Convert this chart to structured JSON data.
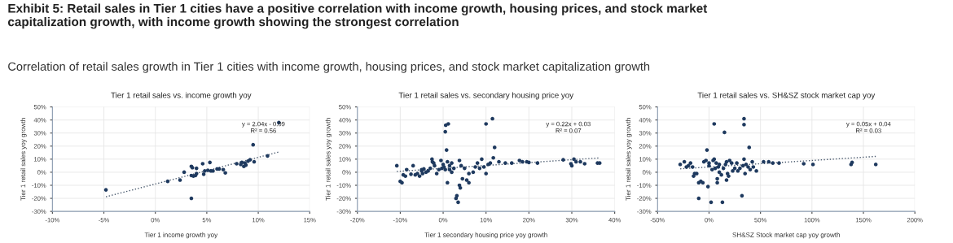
{
  "chart_data": [
    {
      "type": "other",
      "title": "Exhibit 5: Retail sales in Tier 1 cities have a positive correlation with income growth, housing prices, and stock market\ncapitalization growth, with income growth showing the strongest correlation",
      "subtitle": "Correlation of retail sales growth in Tier 1 cities with income growth, housing prices, and stock market capitalization growth"
    },
    {
      "type": "scatter",
      "title": "Tier 1 retail sales vs. income growth yoy",
      "xlabel": "Tier 1 income growth yoy",
      "ylabel": "Tier 1 retail sales yoy growth",
      "xlim": [
        -10,
        15
      ],
      "xticks": [
        {
          "value": -10,
          "label": "-10%"
        },
        {
          "value": -5,
          "label": "-5%"
        },
        {
          "value": 0,
          "label": "0%"
        },
        {
          "value": 5,
          "label": "5%"
        },
        {
          "value": 10,
          "label": "10%"
        },
        {
          "value": 15,
          "label": "15%"
        }
      ],
      "ylim": [
        -30,
        50
      ],
      "yticks": [
        {
          "value": -30,
          "label": "-30%"
        },
        {
          "value": -20,
          "label": "-20%"
        },
        {
          "value": -10,
          "label": "-10%"
        },
        {
          "value": 0,
          "label": "0%"
        },
        {
          "value": 10,
          "label": "10%"
        },
        {
          "value": 20,
          "label": "20%"
        },
        {
          "value": 30,
          "label": "30%"
        },
        {
          "value": 40,
          "label": "40%"
        },
        {
          "value": 50,
          "label": "50%"
        }
      ],
      "grid": true,
      "annotations": [
        "y = 2.04x - 0.09\nR² = 0.56"
      ],
      "series": [
        {
          "type": "scatter",
          "color": "#1f3a5f",
          "marker": "circle",
          "x": [
            -4.8,
            1.2,
            2.4,
            2.8,
            3.5,
            3.6,
            3.5,
            3.7,
            3.9,
            4.0,
            4.0,
            3.5,
            4.6,
            4.7,
            4.8,
            5.1,
            5.3,
            5.4,
            5.6,
            6.0,
            6.2,
            6.6,
            6.8,
            7.9,
            8.2,
            8.4,
            8.5,
            8.7,
            8.8,
            8.9,
            9.0,
            9.2,
            9.5,
            9.6,
            10.9,
            12.0,
            8.6,
            8.3
          ],
          "values": [
            -13.5,
            -7,
            -6,
            0,
            4.5,
            3.5,
            -2.5,
            -3,
            -2.5,
            3,
            -1,
            -20,
            6.5,
            -1.5,
            1,
            1.5,
            7.5,
            1,
            1,
            2.5,
            2.5,
            2,
            -0.5,
            6.5,
            null,
            7.5,
            null,
            7,
            5.5,
            null,
            8.5,
            9.5,
            21,
            8,
            12.5,
            38,
            4.5,
            6
          ]
        },
        {
          "type": "line",
          "color": "#4a5a6e",
          "marker": "none",
          "line_style": "dotted",
          "x": [
            -4.8,
            12
          ],
          "values": [
            -18.8,
            15.5
          ]
        }
      ]
    },
    {
      "type": "scatter",
      "title": "Tier 1 retail sales vs. secondary housing price yoy",
      "xlabel": "Tier 1 secondary housing price yoy growth",
      "ylabel": "Tier 1 retail sales yoy growth",
      "xlim": [
        -20,
        40
      ],
      "xticks": [
        {
          "value": -20,
          "label": "-20%"
        },
        {
          "value": -10,
          "label": "-10%"
        },
        {
          "value": 0,
          "label": "0%"
        },
        {
          "value": 10,
          "label": "10%"
        },
        {
          "value": 20,
          "label": "20%"
        },
        {
          "value": 30,
          "label": "30%"
        },
        {
          "value": 40,
          "label": "40%"
        }
      ],
      "ylim": [
        -30,
        50
      ],
      "yticks": [
        {
          "value": -30,
          "label": "-30%"
        },
        {
          "value": -20,
          "label": "-20%"
        },
        {
          "value": -10,
          "label": "-10%"
        },
        {
          "value": 0,
          "label": "0%"
        },
        {
          "value": 10,
          "label": "10%"
        },
        {
          "value": 20,
          "label": "20%"
        },
        {
          "value": 30,
          "label": "30%"
        },
        {
          "value": 40,
          "label": "40%"
        },
        {
          "value": 50,
          "label": "50%"
        }
      ],
      "grid": true,
      "annotations": [
        "y = 0.22x + 0.03\nR² = 0.07"
      ],
      "series": [
        {
          "type": "scatter",
          "color": "#1f3a5f",
          "marker": "circle",
          "x": [
            -10.8,
            -10,
            -9.6,
            -9.3,
            -8.8,
            -8.5,
            -7.5,
            -7,
            -6.5,
            -6,
            -5.5,
            -5,
            -5,
            -4.8,
            -4.5,
            -4,
            -3.5,
            -3,
            -2.6,
            -2.5,
            -2.2,
            -2,
            -1.5,
            -1,
            -0.5,
            -0.3,
            0,
            0.2,
            0.5,
            0.6,
            0.5,
            0.8,
            1,
            1,
            1.2,
            1.5,
            1.5,
            2,
            2,
            2.5,
            3,
            3.2,
            3.5,
            3.8,
            4,
            3.8,
            4.2,
            4.5,
            5,
            5.5,
            6,
            6,
            7,
            7.5,
            8,
            8.5,
            9,
            9.5,
            10,
            10,
            10.5,
            11,
            11.5,
            11.7,
            12,
            13,
            14.5,
            16,
            17.8,
            18.5,
            19.5,
            20,
            22,
            28,
            29.8,
            30,
            30.5,
            31,
            32,
            33,
            36,
            36.5
          ],
          "values": [
            5,
            -7,
            -8,
            -2,
            -3,
            2,
            -1.5,
            5,
            -2,
            -1,
            -3,
            1,
            2,
            -1,
            2.5,
            0,
            1,
            3,
            10,
            8,
            7,
            5,
            -1,
            2,
            9,
            3,
            6,
            4,
            2,
            36,
            31,
            17,
            8,
            -8,
            37,
            2,
            5,
            7,
            0,
            3,
            -20,
            -18,
            -23,
            -10,
            -12,
            9,
            5,
            -5,
            3,
            -6,
            -8,
            -1,
            0,
            4,
            7,
            3,
            10,
            4,
            -1,
            37,
            6,
            7,
            41,
            11,
            19,
            8,
            7,
            7,
            9,
            8,
            8,
            7.5,
            7,
            9.5,
            6.5,
            5,
            10,
            8,
            8,
            6.5,
            7,
            7
          ]
        },
        {
          "type": "line",
          "color": "#4a5a6e",
          "marker": "none",
          "line_style": "dotted",
          "x": [
            -10.8,
            36.5
          ],
          "values": [
            0.6,
            11.0
          ]
        }
      ]
    },
    {
      "type": "scatter",
      "title": "Tier 1 retail sales vs. SH&SZ stock market cap yoy",
      "xlabel": "SH&SZ Stock market cap yoy growth",
      "ylabel": "Tier 1 retail sales yoy growth",
      "xlim": [
        -50,
        200
      ],
      "xticks": [
        {
          "value": -50,
          "label": "-50%"
        },
        {
          "value": 0,
          "label": "0%"
        },
        {
          "value": 50,
          "label": "50%"
        },
        {
          "value": 100,
          "label": "100%"
        },
        {
          "value": 150,
          "label": "150%"
        },
        {
          "value": 200,
          "label": "200%"
        }
      ],
      "ylim": [
        -30,
        50
      ],
      "yticks": [
        {
          "value": -30,
          "label": "-30%"
        },
        {
          "value": -20,
          "label": "-20%"
        },
        {
          "value": -10,
          "label": "-10%"
        },
        {
          "value": 0,
          "label": "0%"
        },
        {
          "value": 10,
          "label": "10%"
        },
        {
          "value": 20,
          "label": "20%"
        },
        {
          "value": 30,
          "label": "30%"
        },
        {
          "value": 40,
          "label": "40%"
        },
        {
          "value": 50,
          "label": "50%"
        }
      ],
      "grid": true,
      "annotations": [
        "y = 0.05x + 0.04\nR² = 0.03"
      ],
      "series": [
        {
          "type": "scatter",
          "color": "#1f3a5f",
          "marker": "circle",
          "x": [
            -28,
            -24,
            -22,
            -20,
            -18,
            -16,
            -15,
            -14,
            -12,
            -10,
            -10,
            -8,
            -6,
            -5,
            -3,
            -2,
            -1,
            0,
            0,
            2,
            3,
            4,
            5,
            5,
            6,
            7,
            8,
            8,
            9,
            10,
            10,
            12,
            13,
            14,
            15,
            16,
            17,
            17,
            18,
            19,
            20,
            22,
            23,
            25,
            27,
            28,
            30,
            32,
            33,
            34,
            34,
            34,
            35,
            36,
            38,
            39,
            40,
            42,
            43,
            46,
            53,
            58,
            62,
            68,
            92,
            101,
            138,
            139,
            162
          ],
          "values": [
            6,
            8,
            4,
            5,
            7,
            4,
            -3,
            -1,
            -1,
            -8,
            -20,
            -7,
            -8,
            8,
            9,
            17,
            -11,
            7,
            5,
            -23,
            2,
            9,
            10,
            37,
            3,
            7,
            -5,
            -8,
            4,
            6,
            0,
            -2,
            -23,
            3,
            30.5,
            6,
            8,
            -6,
            -1,
            -3,
            9,
            7,
            1,
            3,
            7,
            1,
            3,
            -18,
            5,
            41,
            36.5,
            10,
            -1,
            6,
            4,
            19,
            2,
            8,
            4,
            1,
            8,
            8,
            7,
            7,
            6.5,
            6,
            6,
            7.5,
            6
          ]
        },
        {
          "type": "line",
          "color": "#4a5a6e",
          "marker": "none",
          "line_style": "dotted",
          "x": [
            -28,
            162
          ],
          "values": [
            2.6,
            12.1
          ]
        }
      ]
    }
  ]
}
